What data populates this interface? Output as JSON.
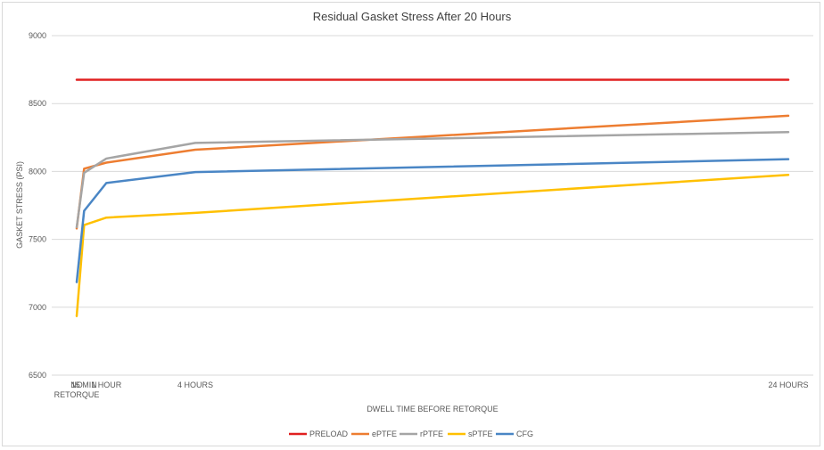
{
  "chart_data": {
    "type": "line",
    "title": "Residual Gasket Stress After 20 Hours",
    "xlabel": "DWELL TIME BEFORE RETORQUE",
    "ylabel": "GASKET STRESS (PSI)",
    "ylim": [
      6500,
      9000
    ],
    "yticks": [
      6500,
      7000,
      7500,
      8000,
      8500,
      9000
    ],
    "x_hours": [
      0,
      0.25,
      1,
      4,
      24
    ],
    "x_labels": [
      [
        "NO",
        "RETORQUE"
      ],
      [
        "15 MIN"
      ],
      [
        "1 HOUR"
      ],
      [
        "4 HOURS"
      ],
      [
        "24 HOURS"
      ]
    ],
    "grid": true,
    "legend_position": "bottom",
    "series": [
      {
        "name": "PRELOAD",
        "color": "#e02020",
        "values": [
          8675,
          8675,
          8675,
          8675,
          8675
        ]
      },
      {
        "name": "ePTFE",
        "color": "#ed7d31",
        "values": [
          7580,
          8020,
          8065,
          8160,
          8410
        ]
      },
      {
        "name": "rPTFE",
        "color": "#a5a5a5",
        "values": [
          7590,
          7990,
          8095,
          8210,
          8290
        ]
      },
      {
        "name": "sPTFE",
        "color": "#ffc000",
        "values": [
          6935,
          7605,
          7660,
          7695,
          7975
        ]
      },
      {
        "name": "CFG",
        "color": "#4a86c5",
        "values": [
          7185,
          7710,
          7915,
          7995,
          8090
        ]
      }
    ]
  }
}
